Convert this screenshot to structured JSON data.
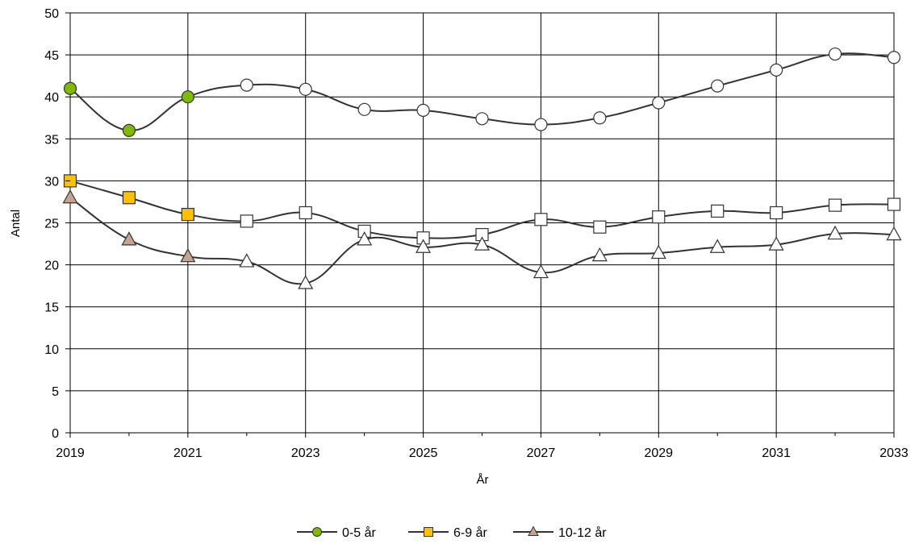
{
  "chart_data": {
    "type": "line",
    "title": "",
    "xlabel": "År",
    "ylabel": "Antal",
    "x": [
      2019,
      2020,
      2021,
      2022,
      2023,
      2024,
      2025,
      2026,
      2027,
      2028,
      2029,
      2030,
      2031,
      2032,
      2033
    ],
    "x_tick_labels": [
      "2019",
      "2021",
      "2023",
      "2025",
      "2027",
      "2029",
      "2031",
      "2033"
    ],
    "y_tick_labels": [
      "0",
      "5",
      "10",
      "15",
      "20",
      "25",
      "30",
      "35",
      "40",
      "45",
      "50"
    ],
    "xlim": [
      2019,
      2033
    ],
    "ylim": [
      0,
      50
    ],
    "grid": true,
    "legend_position": "bottom",
    "observed_until": 2021,
    "series": [
      {
        "name": "0-5 år",
        "marker": "circle",
        "fill_observed": "#7dba00",
        "values": [
          41,
          36,
          40,
          41.4,
          40.9,
          38.5,
          38.4,
          37.4,
          36.7,
          37.5,
          39.3,
          41.3,
          43.2,
          45.1,
          44.7
        ]
      },
      {
        "name": "6-9 år",
        "marker": "square",
        "fill_observed": "#ffc000",
        "values": [
          30,
          28,
          26,
          25.2,
          26.2,
          24,
          23.2,
          23.6,
          25.4,
          24.5,
          25.7,
          26.4,
          26.2,
          27.1,
          27.2
        ]
      },
      {
        "name": "10-12 år",
        "marker": "triangle",
        "fill_observed": "#c4a491",
        "values": [
          28,
          23,
          21,
          20.4,
          17.8,
          23,
          22.1,
          22.4,
          19.1,
          21.1,
          21.4,
          22.1,
          22.4,
          23.7,
          23.6
        ]
      }
    ]
  }
}
